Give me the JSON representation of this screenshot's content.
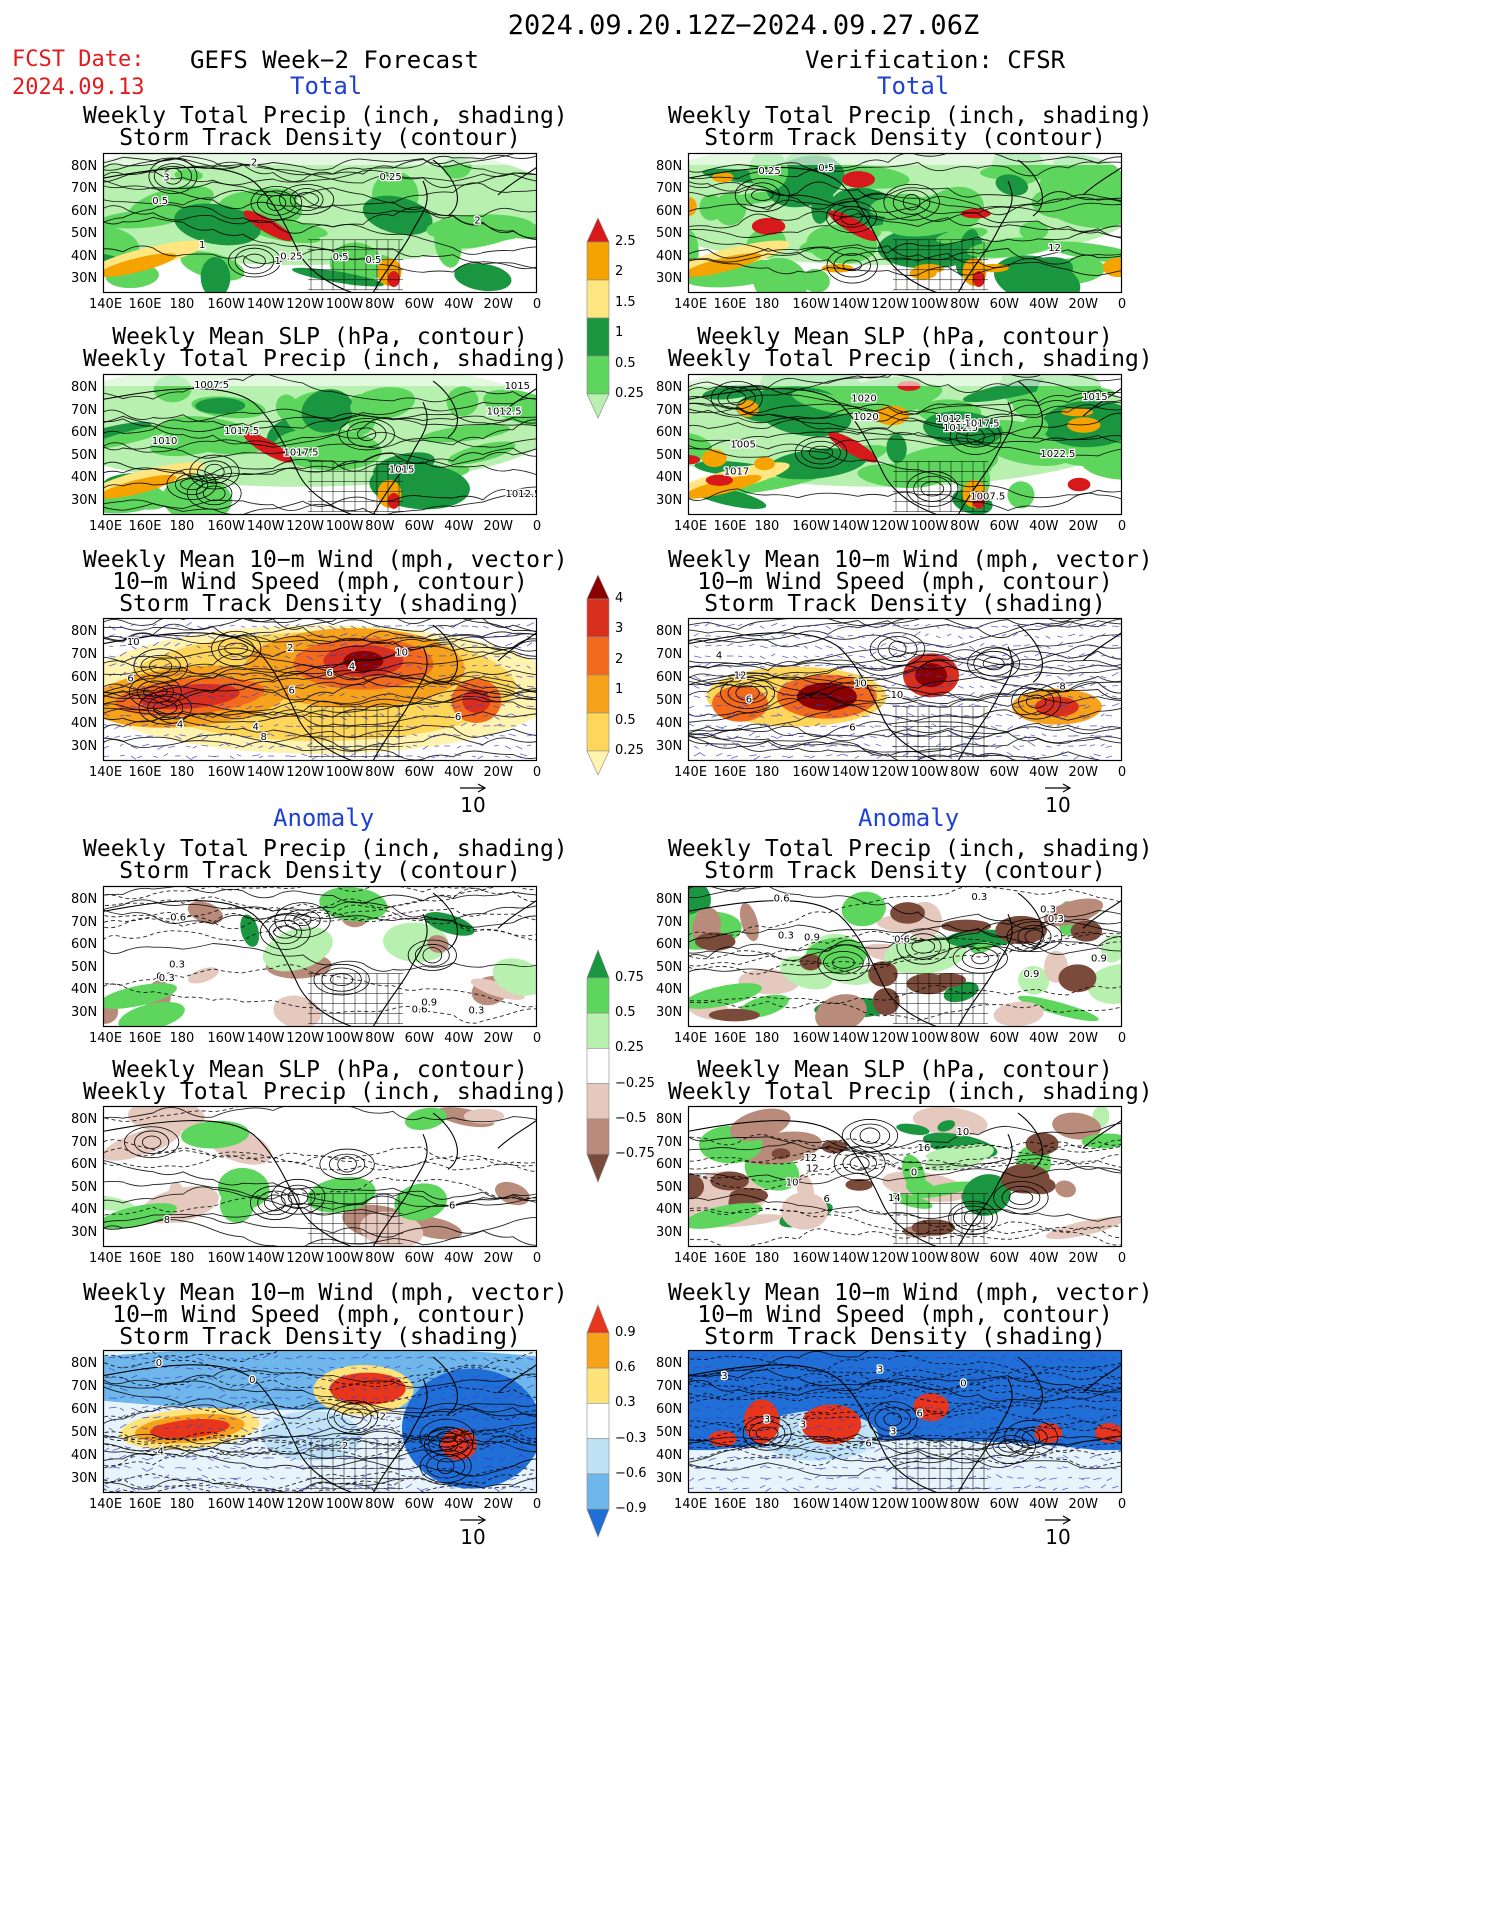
{
  "header": {
    "title": "2024.09.20.12Z−2024.09.27.06Z",
    "fcst_label": "FCST Date:",
    "fcst_date": "2024.09.13",
    "left_heading": "GEFS Week−2 Forecast",
    "right_heading": "Verification: CFSR"
  },
  "sections": {
    "total": "Total",
    "anomaly": "Anomaly"
  },
  "panel_titles": {
    "precip_storm": [
      "Weekly Total Precip (inch, shading)",
      "Storm Track Density (contour)"
    ],
    "slp_precip": [
      "Weekly Mean SLP (hPa, contour)",
      "Weekly Total Precip (inch, shading)"
    ],
    "wind_storm": [
      "Weekly Mean 10−m Wind (mph, vector)",
      "10−m Wind Speed (mph, contour)",
      "Storm Track Density (shading)"
    ]
  },
  "axes": {
    "lat": [
      "80N",
      "70N",
      "60N",
      "50N",
      "40N",
      "30N"
    ],
    "lon": [
      "140E",
      "160E",
      "180",
      "160W",
      "140W",
      "120W",
      "100W",
      "80W",
      "60W",
      "40W",
      "20W",
      "0"
    ]
  },
  "vector_ref": "10",
  "colorbars": {
    "total_precip": {
      "labels": [
        "2.5",
        "2",
        "1.5",
        "1",
        "0.5",
        "0.25"
      ],
      "colors": [
        "#d7191c",
        "#f4a300",
        "#ffe680",
        "#1a9641",
        "#5ed65e",
        "#b8f0b0"
      ]
    },
    "total_storm": {
      "labels": [
        "4",
        "3",
        "2",
        "1",
        "0.5",
        "0.25"
      ],
      "colors": [
        "#8b0000",
        "#d7301f",
        "#f26b1d",
        "#f7a21b",
        "#fdd65a",
        "#fff3b0"
      ]
    },
    "anom_precip": {
      "labels": [
        "0.75",
        "0.5",
        "0.25",
        "−0.25",
        "−0.5",
        "−0.75"
      ],
      "colors": [
        "#1a9641",
        "#5ed65e",
        "#b8f0b0",
        "#ffffff",
        "#e6c9be",
        "#b98b7a",
        "#7a4a3a"
      ]
    },
    "anom_storm": {
      "labels": [
        "0.9",
        "0.6",
        "0.3",
        "−0.3",
        "−0.6",
        "−0.9"
      ],
      "colors": [
        "#e8361c",
        "#f7a21b",
        "#fde37a",
        "#ffffff",
        "#bfe3f5",
        "#6fb7ea",
        "#1f6fd6"
      ]
    }
  },
  "panel_labels": {
    "l1": [
      "0.5",
      "3",
      "2",
      "1",
      "0.5",
      "2",
      "1",
      "0.25",
      "1",
      "0.5",
      "0.25"
    ],
    "r1": [
      "12",
      "0.5",
      "0.25"
    ],
    "l2": [
      "1015",
      "1012.5",
      "1010",
      "1007.5",
      "1017.5",
      "1015",
      "1012.5",
      "1017.5"
    ],
    "r2": [
      "1020",
      "1017",
      "1012.5",
      "1007.5",
      "1022.5",
      "1012.5",
      "1005",
      "1017.5",
      "1015",
      "1020"
    ],
    "l3": [
      "4",
      "6",
      "8",
      "6",
      "4",
      "2",
      "10",
      "6",
      "10",
      "4",
      "6"
    ],
    "r3": [
      "6",
      "4",
      "6",
      "10",
      "12",
      "8",
      "10"
    ],
    "l4": [
      "0.3",
      "0.6",
      "0.3",
      "0.3",
      "0.6",
      "0.3",
      "0.9"
    ],
    "r4": [
      "0.9",
      "0.3",
      "0.9",
      "0.3",
      "0.6",
      "0.3",
      "0.9",
      "0.6",
      "0.3"
    ],
    "l5": [
      "6",
      "8"
    ],
    "r5": [
      "12",
      "10",
      "12",
      "16",
      "14",
      "0",
      "6",
      "10"
    ],
    "l6": [
      "4",
      "2",
      "0",
      "2",
      "0"
    ],
    "r6": [
      "3",
      "6",
      "3",
      "3",
      "3",
      "6",
      "0",
      "3"
    ]
  }
}
